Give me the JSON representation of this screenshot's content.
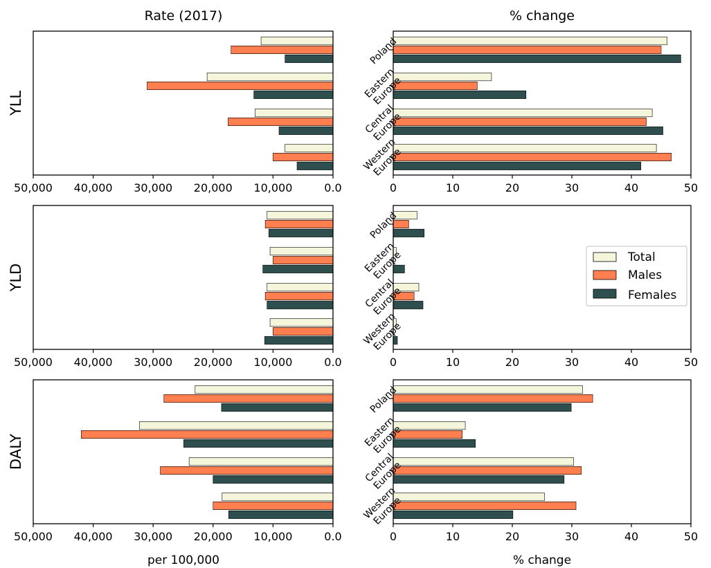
{
  "titles": {
    "left": "Rate (2017)",
    "right": "% change"
  },
  "axis_labels": {
    "left_x": "per 100,000",
    "right_x": "% change"
  },
  "legend": {
    "items": [
      {
        "label": "Total",
        "color": "#f5f5dc"
      },
      {
        "label": "Males",
        "color": "#ff7f50"
      },
      {
        "label": "Females",
        "color": "#2f4f4f"
      }
    ]
  },
  "chart_data": [
    {
      "type": "bar",
      "measure": "YLL",
      "panel": "Rate (2017)",
      "orientation": "horizontal",
      "categories": [
        "Poland",
        "Eastern Europe",
        "Central Europe",
        "Western Europe"
      ],
      "series": [
        {
          "name": "Total",
          "values": [
            12000,
            21000,
            13000,
            8000
          ]
        },
        {
          "name": "Males",
          "values": [
            17000,
            31000,
            17500,
            10000
          ]
        },
        {
          "name": "Females",
          "values": [
            8000,
            13200,
            9000,
            6000
          ]
        }
      ],
      "xlim": [
        50000,
        0
      ],
      "xticks": [
        "50,000",
        "40,000",
        "30,000",
        "20,000",
        "10,000",
        "0.0"
      ]
    },
    {
      "type": "bar",
      "measure": "YLL",
      "panel": "% change",
      "orientation": "horizontal",
      "categories": [
        "Poland",
        "Eastern Europe",
        "Central Europe",
        "Western Europe"
      ],
      "series": [
        {
          "name": "Total",
          "values": [
            46,
            16.5,
            43.5,
            44.2
          ]
        },
        {
          "name": "Males",
          "values": [
            45,
            14.1,
            42.5,
            46.7
          ]
        },
        {
          "name": "Females",
          "values": [
            48.3,
            22.3,
            45.3,
            41.6
          ]
        }
      ],
      "xlim": [
        0,
        50
      ],
      "xticks": [
        "0",
        "10",
        "20",
        "30",
        "40",
        "50"
      ]
    },
    {
      "type": "bar",
      "measure": "YLD",
      "panel": "Rate (2017)",
      "orientation": "horizontal",
      "categories": [
        "Poland",
        "Eastern Europe",
        "Central Europe",
        "Western Europe"
      ],
      "series": [
        {
          "name": "Total",
          "values": [
            11000,
            10500,
            11000,
            10500
          ]
        },
        {
          "name": "Males",
          "values": [
            11300,
            10000,
            11300,
            10000
          ]
        },
        {
          "name": "Females",
          "values": [
            10700,
            11700,
            11000,
            11400
          ]
        }
      ],
      "xlim": [
        50000,
        0
      ],
      "xticks": [
        "50,000",
        "40,000",
        "30,000",
        "20,000",
        "10,000",
        "0.0"
      ]
    },
    {
      "type": "bar",
      "measure": "YLD",
      "panel": "% change",
      "orientation": "horizontal",
      "categories": [
        "Poland",
        "Eastern Europe",
        "Central Europe",
        "Western Europe"
      ],
      "series": [
        {
          "name": "Total",
          "values": [
            4.0,
            0.5,
            4.3,
            0.5
          ]
        },
        {
          "name": "Males",
          "values": [
            2.6,
            0.0,
            3.5,
            0.0
          ]
        },
        {
          "name": "Females",
          "values": [
            5.2,
            1.9,
            5.0,
            0.7
          ]
        }
      ],
      "xlim": [
        0,
        50
      ],
      "xticks": [
        "0",
        "10",
        "20",
        "30",
        "40",
        "50"
      ]
    },
    {
      "type": "bar",
      "measure": "DALY",
      "panel": "Rate (2017)",
      "orientation": "horizontal",
      "categories": [
        "Poland",
        "Eastern Europe",
        "Central Europe",
        "Western Europe"
      ],
      "series": [
        {
          "name": "Total",
          "values": [
            23000,
            32300,
            24000,
            18500
          ]
        },
        {
          "name": "Males",
          "values": [
            28200,
            42000,
            28800,
            20000
          ]
        },
        {
          "name": "Females",
          "values": [
            18600,
            24900,
            20000,
            17400
          ]
        }
      ],
      "xlim": [
        50000,
        0
      ],
      "xticks": [
        "50,000",
        "40,000",
        "30,000",
        "20,000",
        "10,000",
        "0.0"
      ]
    },
    {
      "type": "bar",
      "measure": "DALY",
      "panel": "% change",
      "orientation": "horizontal",
      "categories": [
        "Poland",
        "Eastern Europe",
        "Central Europe",
        "Western Europe"
      ],
      "series": [
        {
          "name": "Total",
          "values": [
            31.8,
            12.1,
            30.3,
            25.4
          ]
        },
        {
          "name": "Males",
          "values": [
            33.5,
            11.6,
            31.6,
            30.7
          ]
        },
        {
          "name": "Females",
          "values": [
            29.9,
            13.8,
            28.7,
            20.1
          ]
        }
      ],
      "xlim": [
        0,
        50
      ],
      "xticks": [
        "0",
        "10",
        "20",
        "30",
        "40",
        "50"
      ]
    }
  ]
}
